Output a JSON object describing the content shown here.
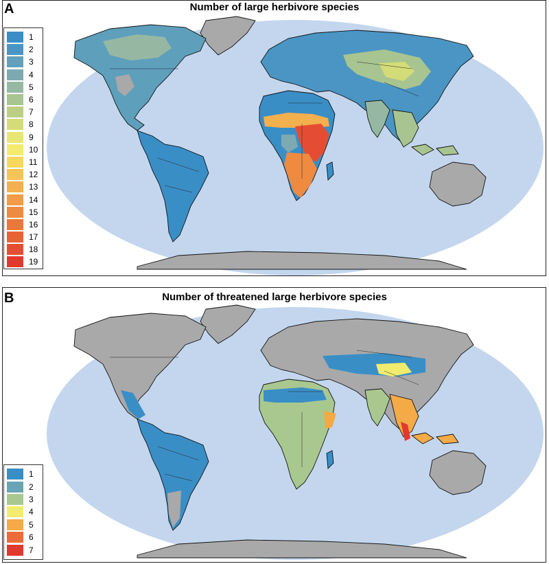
{
  "colors": {
    "ocean": "#c3d6ee",
    "land_no_data": "#a9a9a9",
    "blue": "#3b8fc7",
    "teal": "#6aa4b4",
    "green": "#a6c892",
    "yellow": "#f0ea76",
    "orange": "#f1a845",
    "red": "#e23b2f"
  },
  "panel_a": {
    "letter": "A",
    "title": "Number of large herbivore species",
    "legend": [
      {
        "label": "1",
        "color": "#3a8ec6"
      },
      {
        "label": "2",
        "color": "#4a95c3"
      },
      {
        "label": "3",
        "color": "#63a0bb"
      },
      {
        "label": "4",
        "color": "#7daab1"
      },
      {
        "label": "5",
        "color": "#96b8a3"
      },
      {
        "label": "6",
        "color": "#a8c491"
      },
      {
        "label": "7",
        "color": "#bccf84"
      },
      {
        "label": "8",
        "color": "#d3dc78"
      },
      {
        "label": "9",
        "color": "#e7e673"
      },
      {
        "label": "10",
        "color": "#f3eb6c"
      },
      {
        "label": "11",
        "color": "#f6d85d"
      },
      {
        "label": "12",
        "color": "#f5c455"
      },
      {
        "label": "13",
        "color": "#f3b04e"
      },
      {
        "label": "14",
        "color": "#f29c47"
      },
      {
        "label": "15",
        "color": "#ef8a41"
      },
      {
        "label": "16",
        "color": "#eb773b"
      },
      {
        "label": "17",
        "color": "#e86236"
      },
      {
        "label": "18",
        "color": "#e54d32"
      },
      {
        "label": "19",
        "color": "#e2392e"
      }
    ]
  },
  "panel_b": {
    "letter": "B",
    "title": "Number of  threatened large herbivore species",
    "legend": [
      {
        "label": "1",
        "color": "#3a8ec6"
      },
      {
        "label": "2",
        "color": "#6aa4b4"
      },
      {
        "label": "3",
        "color": "#a9c890"
      },
      {
        "label": "4",
        "color": "#f1ec6d"
      },
      {
        "label": "5",
        "color": "#f3aa47"
      },
      {
        "label": "6",
        "color": "#ec6b38"
      },
      {
        "label": "7",
        "color": "#e2392e"
      }
    ]
  }
}
